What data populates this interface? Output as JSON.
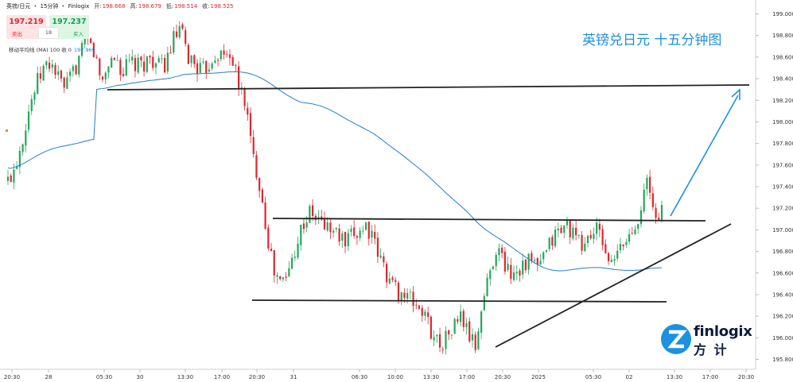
{
  "header": {
    "symbol": "英镑/日元",
    "timeframe": "15分钟",
    "source": "Finlogix",
    "open_label": "开:",
    "open": "198.668",
    "high_label": "高:",
    "high": "198.679",
    "low_label": "低:",
    "low": "198.514",
    "close_label": "收:",
    "close": "198.525"
  },
  "trade": {
    "sell_price": "197.219",
    "sell_label": "卖出",
    "spread": "18",
    "buy_price": "197.237",
    "buy_label": "买入"
  },
  "indicator": {
    "label": "移动平均线 (MA) 100 收 0",
    "value": "197.969"
  },
  "annotation_title": "英镑兑日元 十五分钟图",
  "logo": {
    "wordmark": "finlogix",
    "chinese": "方 计"
  },
  "colors": {
    "up": "#26a65b",
    "down": "#e0262d",
    "ma": "#1d7fd8",
    "arrow": "#1d90e0",
    "trend_line": "#222222"
  },
  "chart_data": {
    "type": "candlestick",
    "title": "英镑兑日元 十五分钟图",
    "y_axis_position": "right",
    "ylim": [
      195.75,
      199.1
    ],
    "y_ticks": [
      "199.000",
      "198.800",
      "198.600",
      "198.400",
      "198.200",
      "198.000",
      "197.800",
      "197.600",
      "197.400",
      "197.200",
      "197.000",
      "196.800",
      "196.600",
      "196.400",
      "196.200",
      "196.000",
      "195.800"
    ],
    "x_ticks": [
      "20:30",
      "28",
      "05:30",
      "30",
      "13:30",
      "17:00",
      "20:30",
      "31",
      "06:30",
      "10:00",
      "13:30",
      "17:00",
      "20:30",
      "2025",
      "05:30",
      "02",
      "13:30",
      "17:00",
      "20:30"
    ],
    "price_path": [
      197.45,
      197.6,
      197.85,
      198.15,
      198.35,
      198.5,
      198.55,
      198.4,
      198.3,
      198.45,
      198.6,
      198.75,
      198.65,
      198.35,
      198.55,
      198.6,
      198.45,
      198.55,
      198.5,
      198.55,
      198.6,
      198.5,
      198.55,
      198.75,
      198.85,
      198.6,
      198.55,
      198.45,
      198.55,
      198.65,
      198.6,
      198.65,
      198.35,
      198.2,
      197.7,
      197.45,
      197.0,
      196.6,
      196.5,
      196.6,
      196.85,
      197.05,
      197.15,
      197.1,
      197.05,
      197.0,
      196.95,
      196.85,
      196.95,
      197.0,
      197.05,
      196.85,
      196.7,
      196.55,
      196.45,
      196.4,
      196.35,
      196.3,
      196.2,
      196.05,
      195.95,
      196.0,
      196.1,
      196.2,
      196.05,
      195.9,
      196.3,
      196.6,
      196.85,
      196.7,
      196.6,
      196.65,
      196.7,
      196.7,
      196.65,
      196.8,
      196.95,
      197.0,
      197.05,
      196.9,
      196.85,
      196.95,
      197.0,
      196.85,
      196.65,
      196.8,
      196.9,
      197.0,
      197.2,
      197.45,
      197.1,
      197.2
    ],
    "moving_average": {
      "name": "MA 100",
      "last_value": 197.969
    },
    "support_resistance": [
      198.3,
      197.1,
      196.35
    ],
    "projection": "up"
  }
}
